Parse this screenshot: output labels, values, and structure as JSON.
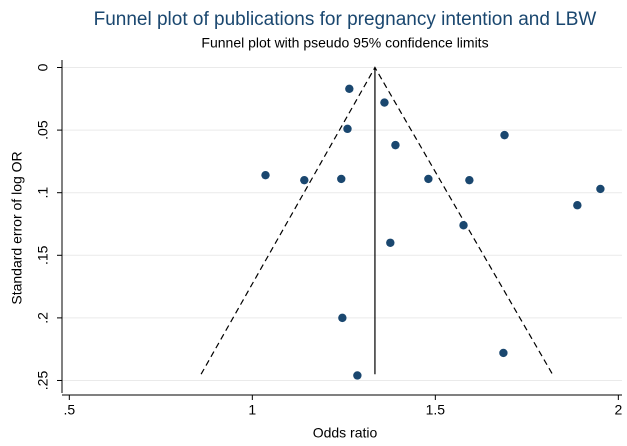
{
  "chart_data": {
    "type": "funnel",
    "title": "Funnel plot of publications for pregnancy intention and LBW",
    "subtitle": "Funnel plot with pseudo 95% confidence limits",
    "x_label": "Odds ratio",
    "y_label": "Standard error of log OR",
    "x": [
      1.265,
      1.361,
      1.26,
      1.689,
      1.391,
      1.036,
      1.142,
      1.243,
      1.481,
      1.593,
      1.951,
      1.888,
      1.577,
      1.377,
      1.246,
      1.686,
      1.287
    ],
    "values": [
      0.017,
      0.028,
      0.049,
      0.054,
      0.062,
      0.086,
      0.09,
      0.089,
      0.089,
      0.09,
      0.097,
      0.11,
      0.126,
      0.14,
      0.2,
      0.228,
      0.246
    ],
    "color": "#1a476f",
    "pooled_estimate": 1.335,
    "funnel": {
      "x": [
        0.86,
        1.335,
        1.82
      ],
      "y": [
        0.245,
        0,
        0.245
      ]
    },
    "xlim": [
      0.48,
      2.01
    ],
    "ylim": [
      -0.006,
      0.26
    ],
    "y_reversed": true,
    "xticks": [
      {
        "value": 0.5,
        "label": ".5"
      },
      1,
      1.5,
      2
    ],
    "yticks": [
      0,
      {
        "value": 0.05,
        "label": ".05"
      },
      {
        "value": 0.1,
        "label": ".1"
      },
      {
        "value": 0.15,
        "label": ".15"
      },
      {
        "value": 0.2,
        "label": ".2"
      },
      {
        "value": 0.25,
        "label": ".25"
      }
    ],
    "grid": true
  }
}
